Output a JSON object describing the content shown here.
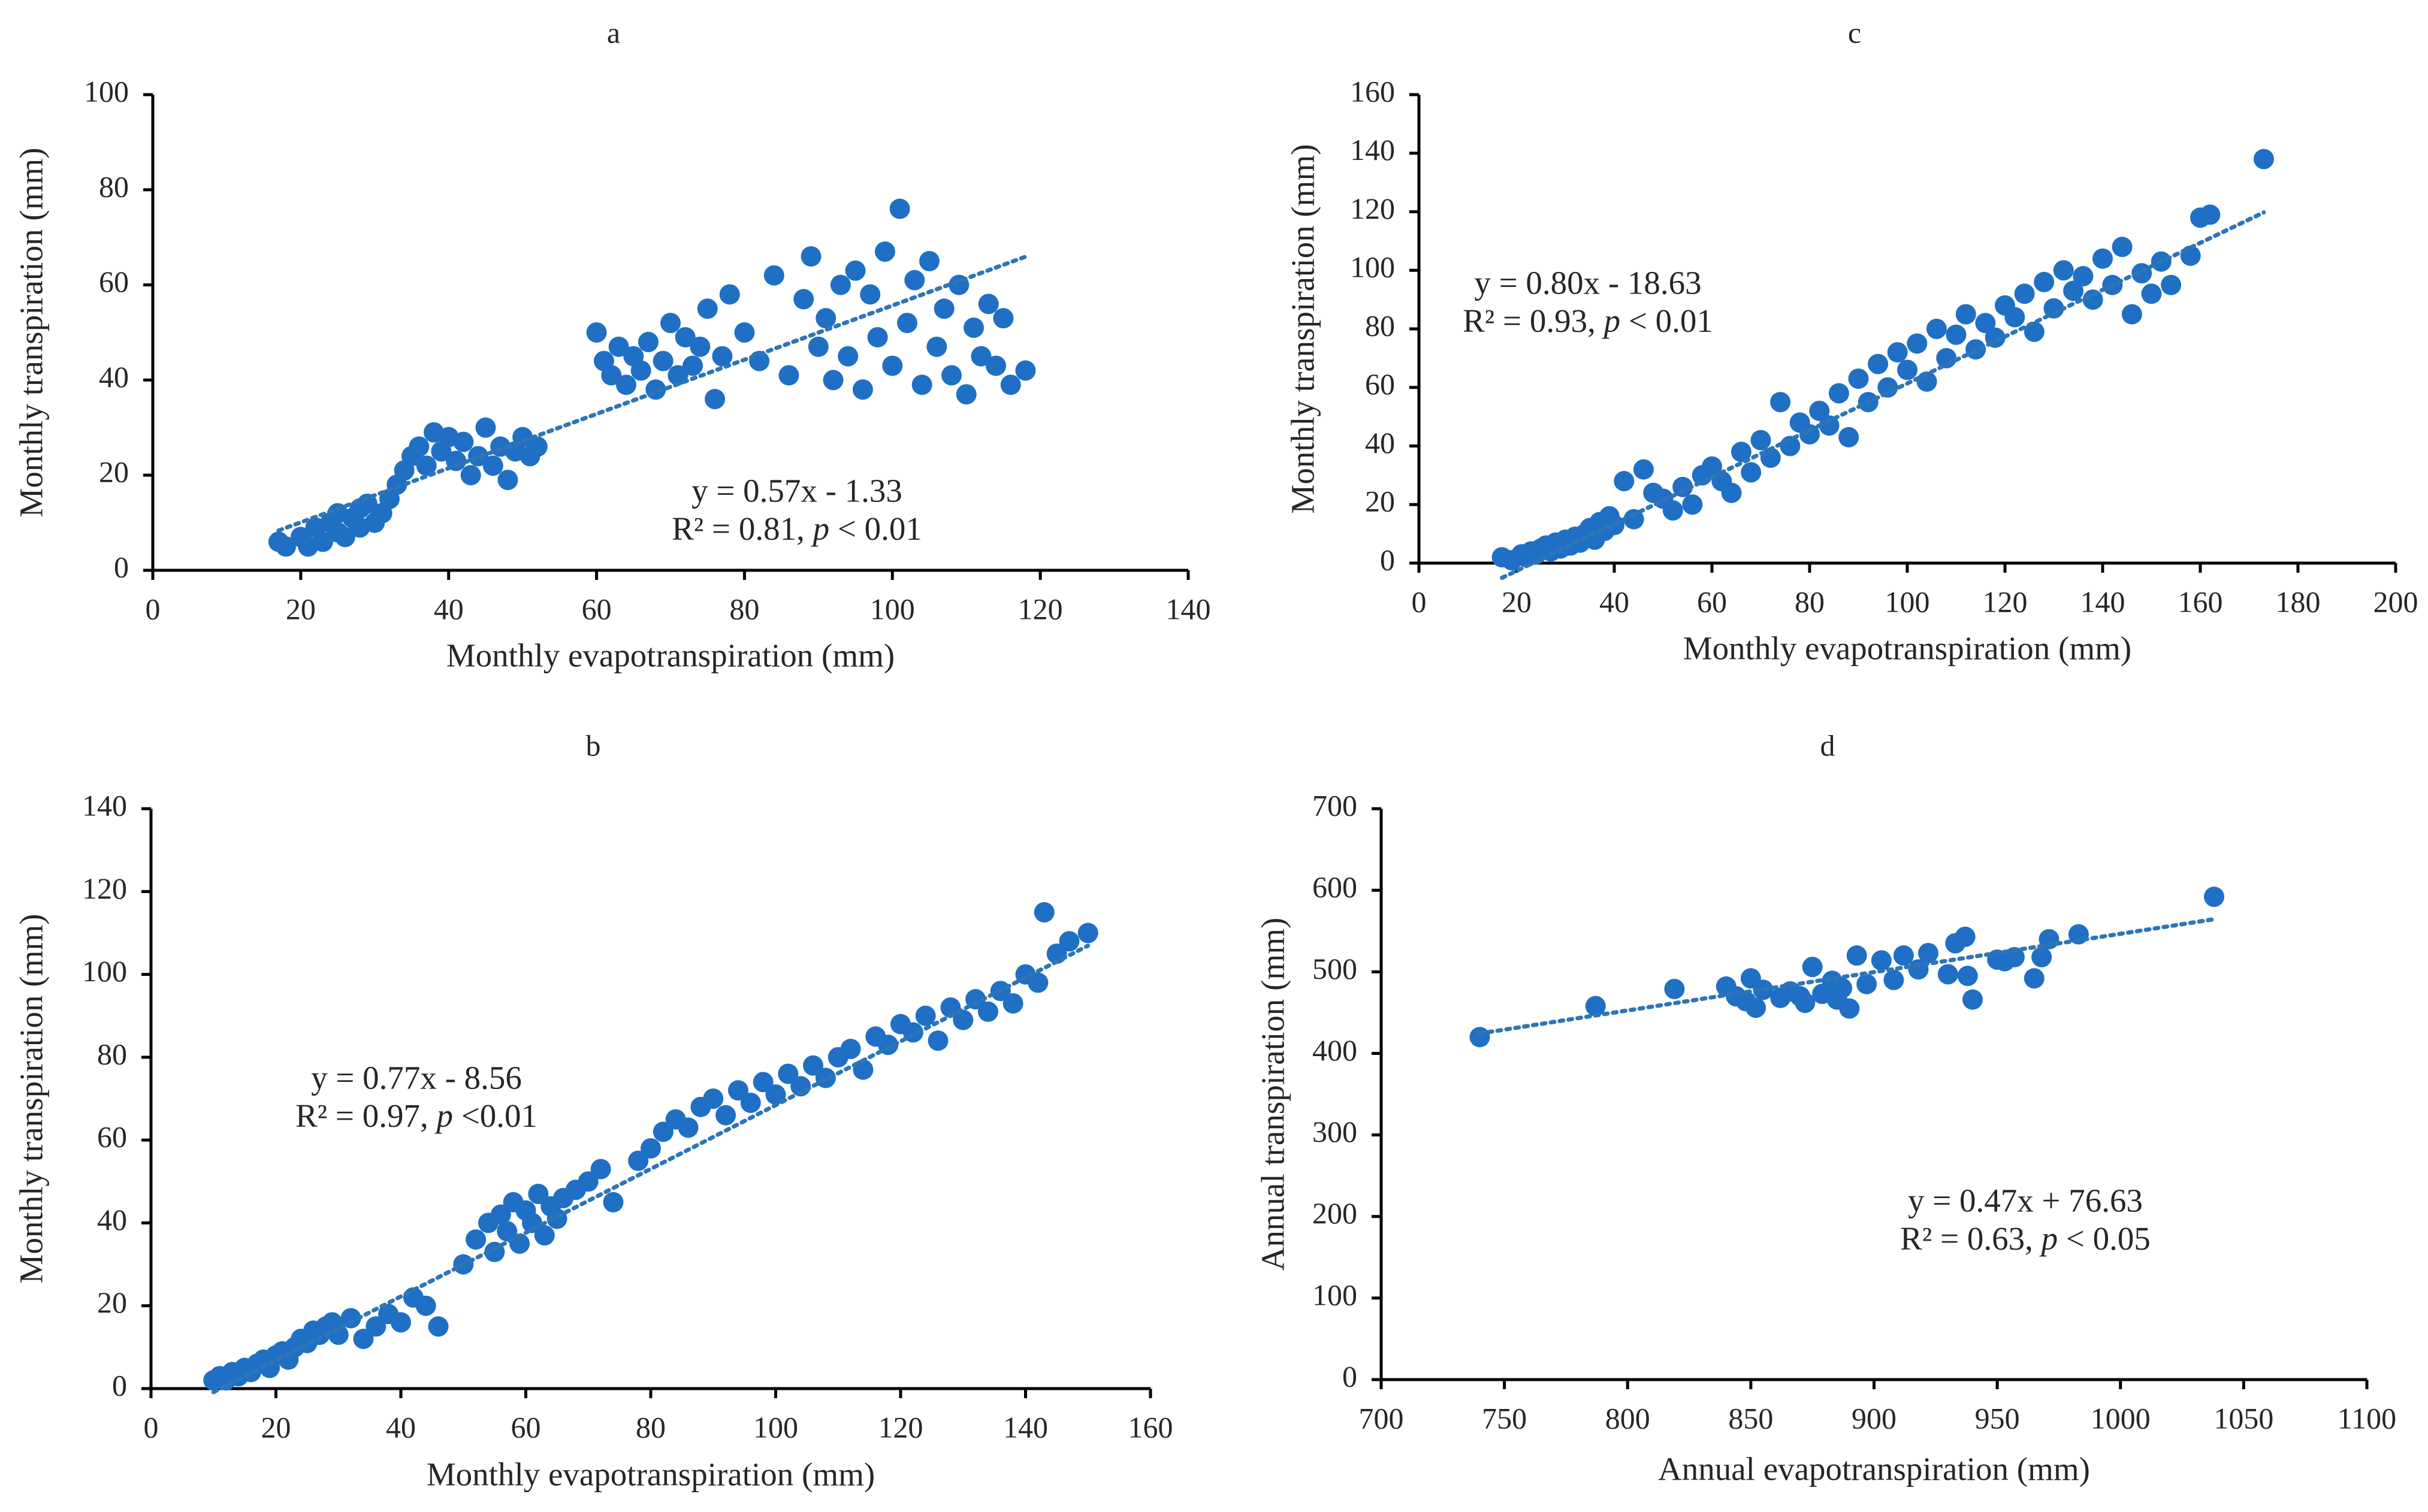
{
  "colors": {
    "points": "#1F6FC5",
    "trend": "#2E75B6",
    "axis": "#000000",
    "text": "#262626"
  },
  "chart_data": [
    {
      "type": "scatter",
      "panel_label": "a",
      "xlabel": "Monthly evapotranspiration (mm)",
      "ylabel": "Monthly transpiration (mm)",
      "xlim": [
        0,
        140
      ],
      "ylim": [
        0,
        100
      ],
      "xticks": [
        0,
        20,
        40,
        60,
        80,
        100,
        120,
        140
      ],
      "yticks": [
        0,
        20,
        40,
        60,
        80,
        100
      ],
      "x_tick_labels": [
        "0",
        "20",
        "40",
        "60",
        "80",
        "100",
        "120",
        "140"
      ],
      "y_tick_labels": [
        "0",
        "20",
        "40",
        "60",
        "80",
        "100"
      ],
      "grid": false,
      "equation": "y = 0.57x - 1.33",
      "r2_prefix": "R² = 0.81, ",
      "p_symbol": "p",
      "p_suffix": " < 0.01",
      "trendline": {
        "slope": 0.57,
        "intercept": -1.33,
        "x_range": [
          17,
          118
        ]
      },
      "series": [
        {
          "x": [
            17,
            18,
            20,
            21,
            22,
            23,
            24,
            25,
            25,
            26,
            27,
            28,
            28,
            29,
            30,
            31,
            32,
            33,
            34,
            35,
            36,
            37,
            38,
            39,
            40,
            41,
            42,
            43,
            44,
            45,
            46,
            47,
            48,
            49,
            50,
            51,
            52,
            60,
            61,
            62,
            63,
            64,
            65,
            66,
            67,
            68,
            69,
            70,
            71,
            72,
            73,
            74,
            75,
            76,
            77,
            78,
            80,
            82,
            84,
            86,
            88,
            89,
            90,
            91,
            92,
            93,
            94,
            95,
            96,
            97,
            98,
            99,
            100,
            101,
            102,
            103,
            104,
            105,
            106,
            107,
            108,
            109,
            110,
            111,
            112,
            113,
            114,
            115,
            116,
            118
          ],
          "y": [
            6,
            5,
            7,
            5,
            9,
            6,
            10,
            8,
            12,
            7,
            11,
            13,
            9,
            14,
            10,
            12,
            15,
            18,
            21,
            24,
            26,
            22,
            29,
            25,
            28,
            23,
            27,
            20,
            24,
            30,
            22,
            26,
            19,
            25,
            28,
            24,
            26,
            50,
            44,
            41,
            47,
            39,
            45,
            42,
            48,
            38,
            44,
            52,
            41,
            49,
            43,
            47,
            55,
            36,
            45,
            58,
            50,
            44,
            62,
            41,
            57,
            66,
            47,
            53,
            40,
            60,
            45,
            63,
            38,
            58,
            49,
            67,
            43,
            76,
            52,
            61,
            39,
            65,
            47,
            55,
            41,
            60,
            37,
            51,
            45,
            56,
            43,
            53,
            39,
            42
          ]
        }
      ]
    },
    {
      "type": "scatter",
      "panel_label": "b",
      "xlabel": "Monthly evapotranspiration (mm)",
      "ylabel": "Monthly transpiration (mm)",
      "xlim": [
        0,
        160
      ],
      "ylim": [
        0,
        140
      ],
      "xticks": [
        0,
        20,
        40,
        60,
        80,
        100,
        120,
        140,
        160
      ],
      "yticks": [
        0,
        20,
        40,
        60,
        80,
        100,
        120,
        140
      ],
      "x_tick_labels": [
        "0",
        "20",
        "40",
        "60",
        "80",
        "100",
        "120",
        "140",
        "160"
      ],
      "y_tick_labels": [
        "0",
        "20",
        "40",
        "60",
        "80",
        "100",
        "120",
        "140"
      ],
      "grid": false,
      "equation": "y = 0.77x - 8.56",
      "r2_prefix": "R² = 0.97, ",
      "p_symbol": "p",
      "p_suffix": " <0.01",
      "trendline": {
        "slope": 0.77,
        "intercept": -8.56,
        "x_range": [
          10,
          150
        ]
      },
      "series": [
        {
          "x": [
            10,
            11,
            12,
            13,
            14,
            15,
            16,
            17,
            18,
            19,
            20,
            21,
            22,
            23,
            24,
            25,
            26,
            27,
            28,
            29,
            30,
            32,
            34,
            36,
            38,
            40,
            42,
            44,
            46,
            50,
            52,
            54,
            55,
            56,
            57,
            58,
            59,
            60,
            61,
            62,
            63,
            64,
            65,
            66,
            68,
            70,
            72,
            74,
            78,
            80,
            82,
            84,
            86,
            88,
            90,
            92,
            94,
            96,
            98,
            100,
            102,
            104,
            106,
            108,
            110,
            112,
            114,
            116,
            118,
            120,
            122,
            124,
            126,
            128,
            130,
            132,
            134,
            136,
            138,
            140,
            142,
            143,
            145,
            147,
            150
          ],
          "y": [
            2,
            3,
            2,
            4,
            3,
            5,
            4,
            6,
            7,
            5,
            8,
            9,
            7,
            10,
            12,
            11,
            14,
            13,
            15,
            16,
            13,
            17,
            12,
            15,
            18,
            16,
            22,
            20,
            15,
            30,
            36,
            40,
            33,
            42,
            38,
            45,
            35,
            43,
            40,
            47,
            37,
            44,
            41,
            46,
            48,
            50,
            53,
            45,
            55,
            58,
            62,
            65,
            63,
            68,
            70,
            66,
            72,
            69,
            74,
            71,
            76,
            73,
            78,
            75,
            80,
            82,
            77,
            85,
            83,
            88,
            86,
            90,
            84,
            92,
            89,
            94,
            91,
            96,
            93,
            100,
            98,
            115,
            105,
            108,
            110
          ]
        }
      ]
    },
    {
      "type": "scatter",
      "panel_label": "c",
      "xlabel": "Monthly evapotranspiration (mm)",
      "ylabel": "Monthly transpiration (mm)",
      "xlim": [
        0,
        200
      ],
      "ylim": [
        0,
        160
      ],
      "xticks": [
        0,
        20,
        40,
        60,
        80,
        100,
        120,
        140,
        160,
        180,
        200
      ],
      "yticks": [
        0,
        20,
        40,
        60,
        80,
        100,
        120,
        140,
        160
      ],
      "x_tick_labels": [
        "0",
        "20",
        "40",
        "60",
        "80",
        "100",
        "120",
        "140",
        "160",
        "180",
        "200"
      ],
      "y_tick_labels": [
        "0",
        "20",
        "40",
        "60",
        "80",
        "100",
        "120",
        "140",
        "160"
      ],
      "grid": false,
      "equation": "y = 0.80x - 18.63",
      "r2_prefix": "R² = 0.93, ",
      "p_symbol": "p",
      "p_suffix": " < 0.01",
      "trendline": {
        "slope": 0.8,
        "intercept": -18.63,
        "x_range": [
          17,
          173
        ]
      },
      "series": [
        {
          "x": [
            17,
            19,
            21,
            22,
            23,
            24,
            25,
            26,
            27,
            28,
            29,
            30,
            31,
            32,
            33,
            34,
            35,
            36,
            37,
            38,
            39,
            40,
            42,
            44,
            46,
            48,
            50,
            52,
            54,
            56,
            58,
            60,
            62,
            64,
            66,
            68,
            70,
            72,
            74,
            76,
            78,
            80,
            82,
            84,
            86,
            88,
            90,
            92,
            94,
            96,
            98,
            100,
            102,
            104,
            106,
            108,
            110,
            112,
            114,
            116,
            118,
            120,
            122,
            124,
            126,
            128,
            130,
            132,
            134,
            136,
            138,
            140,
            142,
            144,
            146,
            148,
            150,
            152,
            154,
            158,
            160,
            162,
            173
          ],
          "y": [
            2,
            1,
            3,
            2,
            4,
            3,
            5,
            6,
            4,
            7,
            5,
            8,
            6,
            9,
            7,
            10,
            12,
            8,
            14,
            11,
            16,
            13,
            28,
            15,
            32,
            24,
            22,
            18,
            26,
            20,
            30,
            33,
            28,
            24,
            38,
            31,
            42,
            36,
            55,
            40,
            48,
            44,
            52,
            47,
            58,
            43,
            63,
            55,
            68,
            60,
            72,
            66,
            75,
            62,
            80,
            70,
            78,
            85,
            73,
            82,
            77,
            88,
            84,
            92,
            79,
            96,
            87,
            100,
            93,
            98,
            90,
            104,
            95,
            108,
            85,
            99,
            92,
            103,
            95,
            105,
            118,
            119,
            138
          ]
        }
      ]
    },
    {
      "type": "scatter",
      "panel_label": "d",
      "xlabel": "Annual evapotranspiration (mm)",
      "ylabel": "Annual transpiration (mm)",
      "xlim": [
        700,
        1100
      ],
      "ylim": [
        0,
        700
      ],
      "xticks": [
        700,
        750,
        800,
        850,
        900,
        950,
        1000,
        1050,
        1100
      ],
      "yticks": [
        0,
        100,
        200,
        300,
        400,
        500,
        600,
        700
      ],
      "x_tick_labels": [
        "700",
        "750",
        "800",
        "850",
        "900",
        "950",
        "1000",
        "1050",
        "1100"
      ],
      "y_tick_labels": [
        "0",
        "100",
        "200",
        "300",
        "400",
        "500",
        "600",
        "700"
      ],
      "grid": false,
      "equation": "y = 0.47x + 76.63",
      "r2_prefix": "R² = 0.63, ",
      "p_symbol": "p",
      "p_suffix": " < 0.05",
      "trendline": {
        "slope": 0.47,
        "intercept": 76.63,
        "x_range": [
          740,
          1038
        ]
      },
      "series": [
        {
          "x": [
            740,
            787,
            819,
            840,
            844,
            848,
            850,
            852,
            855,
            862,
            866,
            870,
            872,
            875,
            879,
            883,
            885,
            887,
            890,
            893,
            897,
            903,
            908,
            912,
            918,
            922,
            930,
            933,
            937,
            938,
            940,
            950,
            953,
            957,
            965,
            968,
            971,
            983,
            1038
          ],
          "y": [
            420,
            458,
            479,
            482,
            470,
            464,
            492,
            456,
            478,
            468,
            476,
            470,
            462,
            506,
            473,
            489,
            466,
            480,
            455,
            520,
            485,
            514,
            490,
            520,
            503,
            523,
            497,
            535,
            543,
            495,
            466,
            515,
            513,
            518,
            492,
            518,
            540,
            546,
            592
          ]
        }
      ]
    }
  ]
}
